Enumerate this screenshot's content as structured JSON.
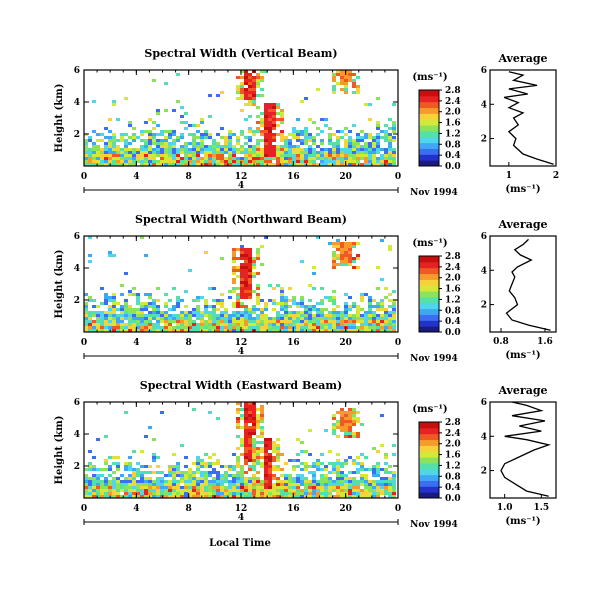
{
  "colors": {
    "scale": [
      "#ffffff",
      "#1a1a80",
      "#2233cc",
      "#3b6ef0",
      "#3fa8f5",
      "#4fd6e8",
      "#55e0a8",
      "#8ae35a",
      "#d4e83a",
      "#f7d13a",
      "#f59a2c",
      "#ef5a24",
      "#e62222",
      "#c80f0f"
    ]
  },
  "chart_data": [
    {
      "type": "heatmap",
      "title": "Spectral Width (Vertical Beam)",
      "ylabel": "Height (km)",
      "xticks": [
        "0",
        "4",
        "8",
        "12",
        "16",
        "20",
        "0"
      ],
      "yticks": [
        "2",
        "4",
        "6"
      ],
      "date_tick": "4",
      "date_label": "Nov 1994",
      "colorbar": {
        "unit": "(ms⁻¹)",
        "ticks": [
          "0.0",
          "0.4",
          "0.8",
          "1.2",
          "1.6",
          "2.0",
          "2.4",
          "2.8"
        ]
      },
      "features": [
        {
          "x": 12.5,
          "y_low": 4.2,
          "y_high": 6.0,
          "value": 2.8
        },
        {
          "x": 14.2,
          "y_low": 0.5,
          "y_high": 4.0,
          "value": 2.8
        },
        {
          "x": 20.0,
          "y_low": 5.0,
          "y_high": 6.0,
          "value": 2.4
        }
      ],
      "average": {
        "title": "Average",
        "xlabel": "(ms⁻¹)",
        "xticks": [
          "1",
          "2"
        ],
        "yticks": [
          "2",
          "4",
          "6"
        ],
        "xlim": [
          0.6,
          2.0
        ],
        "ylim": [
          0.4,
          6.0
        ],
        "profile": [
          [
            1.95,
            0.5
          ],
          [
            1.6,
            0.8
          ],
          [
            1.3,
            1.1
          ],
          [
            1.1,
            1.6
          ],
          [
            1.15,
            2.0
          ],
          [
            1.0,
            2.4
          ],
          [
            1.2,
            2.8
          ],
          [
            1.1,
            3.2
          ],
          [
            1.3,
            3.5
          ],
          [
            1.0,
            3.8
          ],
          [
            1.2,
            4.1
          ],
          [
            0.9,
            4.4
          ],
          [
            1.4,
            4.6
          ],
          [
            1.0,
            4.9
          ],
          [
            1.6,
            5.1
          ],
          [
            1.1,
            5.4
          ],
          [
            1.3,
            5.7
          ],
          [
            1.0,
            5.9
          ]
        ]
      }
    },
    {
      "type": "heatmap",
      "title": "Spectral Width (Northward Beam)",
      "ylabel": "Height (km)",
      "xticks": [
        "0",
        "4",
        "8",
        "12",
        "16",
        "20",
        "0"
      ],
      "yticks": [
        "2",
        "4",
        "6"
      ],
      "date_tick": "4",
      "date_label": "Nov 1994",
      "colorbar": {
        "unit": "(ms⁻¹)",
        "ticks": [
          "0.0",
          "0.4",
          "0.8",
          "1.2",
          "1.6",
          "2.0",
          "2.4",
          "2.8"
        ]
      },
      "features": [
        {
          "x": 12.4,
          "y_low": 2.0,
          "y_high": 5.2,
          "value": 2.8
        },
        {
          "x": 20.0,
          "y_low": 4.4,
          "y_high": 5.6,
          "value": 2.4
        }
      ],
      "average": {
        "title": "Average",
        "xlabel": "(ms⁻¹)",
        "xticks": [
          "0.8",
          "1.6"
        ],
        "yticks": [
          "2",
          "4",
          "6"
        ],
        "xlim": [
          0.6,
          1.8
        ],
        "ylim": [
          0.4,
          6.0
        ],
        "profile": [
          [
            1.7,
            0.5
          ],
          [
            1.3,
            0.8
          ],
          [
            1.0,
            1.1
          ],
          [
            0.9,
            1.5
          ],
          [
            1.1,
            2.0
          ],
          [
            1.05,
            2.4
          ],
          [
            0.95,
            2.8
          ],
          [
            1.0,
            3.2
          ],
          [
            1.05,
            3.6
          ],
          [
            1.0,
            3.9
          ],
          [
            1.1,
            4.2
          ],
          [
            1.35,
            4.6
          ],
          [
            1.15,
            4.9
          ],
          [
            1.05,
            5.2
          ],
          [
            1.2,
            5.5
          ],
          [
            1.3,
            5.8
          ]
        ]
      }
    },
    {
      "type": "heatmap",
      "title": "Spectral Width (Eastward Beam)",
      "ylabel": "Height (km)",
      "xticks": [
        "0",
        "4",
        "8",
        "12",
        "16",
        "20",
        "0"
      ],
      "yticks": [
        "2",
        "4",
        "6"
      ],
      "date_tick": "4",
      "date_label": "Nov 1994",
      "xlabel": "Local Time",
      "colorbar": {
        "unit": "(ms⁻¹)",
        "ticks": [
          "0.0",
          "0.4",
          "0.8",
          "1.2",
          "1.6",
          "2.0",
          "2.4",
          "2.8"
        ]
      },
      "features": [
        {
          "x": 12.5,
          "y_low": 2.0,
          "y_high": 6.0,
          "value": 2.8
        },
        {
          "x": 14.0,
          "y_low": 0.5,
          "y_high": 3.8,
          "value": 2.8
        },
        {
          "x": 20.0,
          "y_low": 4.2,
          "y_high": 5.6,
          "value": 2.4
        }
      ],
      "average": {
        "title": "Average",
        "xlabel": "(ms⁻¹)",
        "xticks": [
          "1.0",
          "1.5"
        ],
        "yticks": [
          "2",
          "4",
          "6"
        ],
        "xlim": [
          0.8,
          1.7
        ],
        "ylim": [
          0.4,
          6.0
        ],
        "profile": [
          [
            1.6,
            0.5
          ],
          [
            1.3,
            0.8
          ],
          [
            1.15,
            1.2
          ],
          [
            1.0,
            1.6
          ],
          [
            0.95,
            2.0
          ],
          [
            1.0,
            2.4
          ],
          [
            1.2,
            2.8
          ],
          [
            1.4,
            3.2
          ],
          [
            1.6,
            3.5
          ],
          [
            1.3,
            3.8
          ],
          [
            1.0,
            4.0
          ],
          [
            1.5,
            4.3
          ],
          [
            1.2,
            4.6
          ],
          [
            1.55,
            4.9
          ],
          [
            1.1,
            5.2
          ],
          [
            1.5,
            5.5
          ],
          [
            1.3,
            5.8
          ],
          [
            1.1,
            6.0
          ]
        ]
      }
    }
  ]
}
